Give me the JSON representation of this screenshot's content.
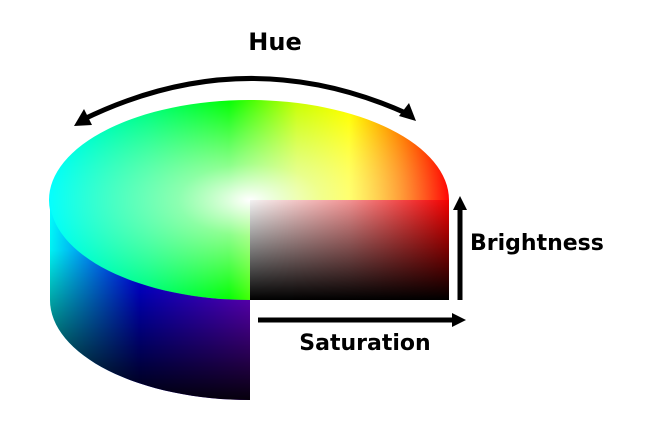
{
  "labels": {
    "hue": "Hue",
    "brightness": "Brightness",
    "saturation": "Saturation"
  },
  "colors": {
    "arrow": "#000000",
    "background": "#ffffff"
  }
}
